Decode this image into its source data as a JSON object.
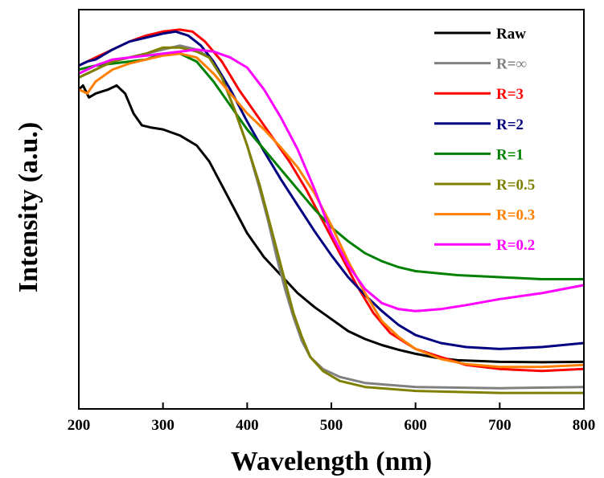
{
  "chart_data": {
    "type": "line",
    "title": "",
    "xlabel": "Wavelength (nm)",
    "ylabel": "Intensity (a.u.)",
    "xlim": [
      200,
      800
    ],
    "ylim": [
      0,
      1
    ],
    "x_ticks": [
      "200",
      "300",
      "400",
      "500",
      "600",
      "700",
      "800"
    ],
    "y_ticks_shown": false,
    "grid": false,
    "legend_position": "top-right",
    "series": [
      {
        "name": "Raw",
        "color": "#000000",
        "points": [
          [
            200,
            0.8
          ],
          [
            205,
            0.81
          ],
          [
            212,
            0.78
          ],
          [
            220,
            0.79
          ],
          [
            235,
            0.8
          ],
          [
            245,
            0.81
          ],
          [
            255,
            0.79
          ],
          [
            265,
            0.74
          ],
          [
            275,
            0.71
          ],
          [
            285,
            0.705
          ],
          [
            300,
            0.7
          ],
          [
            320,
            0.685
          ],
          [
            340,
            0.66
          ],
          [
            355,
            0.62
          ],
          [
            370,
            0.56
          ],
          [
            385,
            0.5
          ],
          [
            400,
            0.44
          ],
          [
            420,
            0.38
          ],
          [
            440,
            0.335
          ],
          [
            460,
            0.29
          ],
          [
            480,
            0.255
          ],
          [
            500,
            0.225
          ],
          [
            520,
            0.195
          ],
          [
            540,
            0.175
          ],
          [
            560,
            0.16
          ],
          [
            580,
            0.148
          ],
          [
            600,
            0.138
          ],
          [
            625,
            0.128
          ],
          [
            650,
            0.122
          ],
          [
            700,
            0.118
          ],
          [
            750,
            0.117
          ],
          [
            800,
            0.118
          ]
        ]
      },
      {
        "name": "R=∞",
        "color": "#808080",
        "points": [
          [
            200,
            0.83
          ],
          [
            210,
            0.84
          ],
          [
            220,
            0.85
          ],
          [
            240,
            0.87
          ],
          [
            260,
            0.88
          ],
          [
            280,
            0.89
          ],
          [
            300,
            0.9
          ],
          [
            320,
            0.91
          ],
          [
            340,
            0.9
          ],
          [
            355,
            0.88
          ],
          [
            370,
            0.83
          ],
          [
            385,
            0.75
          ],
          [
            400,
            0.66
          ],
          [
            415,
            0.55
          ],
          [
            425,
            0.47
          ],
          [
            435,
            0.38
          ],
          [
            445,
            0.3
          ],
          [
            455,
            0.23
          ],
          [
            465,
            0.17
          ],
          [
            475,
            0.13
          ],
          [
            490,
            0.1
          ],
          [
            510,
            0.08
          ],
          [
            540,
            0.065
          ],
          [
            600,
            0.055
          ],
          [
            700,
            0.052
          ],
          [
            800,
            0.055
          ]
        ]
      },
      {
        "name": "R=3",
        "color": "#ff0000",
        "points": [
          [
            200,
            0.86
          ],
          [
            210,
            0.87
          ],
          [
            220,
            0.88
          ],
          [
            240,
            0.9
          ],
          [
            260,
            0.92
          ],
          [
            280,
            0.935
          ],
          [
            300,
            0.945
          ],
          [
            320,
            0.95
          ],
          [
            335,
            0.945
          ],
          [
            350,
            0.92
          ],
          [
            370,
            0.87
          ],
          [
            390,
            0.8
          ],
          [
            410,
            0.74
          ],
          [
            430,
            0.68
          ],
          [
            450,
            0.62
          ],
          [
            470,
            0.55
          ],
          [
            490,
            0.47
          ],
          [
            510,
            0.39
          ],
          [
            530,
            0.31
          ],
          [
            550,
            0.24
          ],
          [
            570,
            0.19
          ],
          [
            600,
            0.15
          ],
          [
            630,
            0.13
          ],
          [
            660,
            0.11
          ],
          [
            700,
            0.1
          ],
          [
            750,
            0.095
          ],
          [
            800,
            0.1
          ]
        ]
      },
      {
        "name": "R=2",
        "color": "#000080",
        "points": [
          [
            200,
            0.86
          ],
          [
            210,
            0.87
          ],
          [
            220,
            0.875
          ],
          [
            240,
            0.9
          ],
          [
            260,
            0.92
          ],
          [
            280,
            0.93
          ],
          [
            300,
            0.94
          ],
          [
            315,
            0.945
          ],
          [
            330,
            0.935
          ],
          [
            345,
            0.91
          ],
          [
            360,
            0.87
          ],
          [
            380,
            0.8
          ],
          [
            400,
            0.72
          ],
          [
            420,
            0.645
          ],
          [
            440,
            0.575
          ],
          [
            460,
            0.51
          ],
          [
            480,
            0.445
          ],
          [
            500,
            0.385
          ],
          [
            520,
            0.33
          ],
          [
            540,
            0.285
          ],
          [
            560,
            0.245
          ],
          [
            580,
            0.21
          ],
          [
            600,
            0.185
          ],
          [
            630,
            0.165
          ],
          [
            660,
            0.155
          ],
          [
            700,
            0.15
          ],
          [
            750,
            0.155
          ],
          [
            800,
            0.165
          ]
        ]
      },
      {
        "name": "R=1",
        "color": "#008000",
        "points": [
          [
            200,
            0.85
          ],
          [
            210,
            0.855
          ],
          [
            220,
            0.86
          ],
          [
            240,
            0.865
          ],
          [
            260,
            0.87
          ],
          [
            280,
            0.875
          ],
          [
            300,
            0.89
          ],
          [
            320,
            0.89
          ],
          [
            340,
            0.87
          ],
          [
            360,
            0.82
          ],
          [
            380,
            0.76
          ],
          [
            400,
            0.7
          ],
          [
            420,
            0.65
          ],
          [
            440,
            0.6
          ],
          [
            460,
            0.55
          ],
          [
            480,
            0.5
          ],
          [
            500,
            0.455
          ],
          [
            520,
            0.42
          ],
          [
            540,
            0.39
          ],
          [
            560,
            0.37
          ],
          [
            580,
            0.355
          ],
          [
            600,
            0.345
          ],
          [
            650,
            0.335
          ],
          [
            700,
            0.33
          ],
          [
            750,
            0.325
          ],
          [
            800,
            0.325
          ]
        ]
      },
      {
        "name": "R=0.5",
        "color": "#808000",
        "points": [
          [
            200,
            0.83
          ],
          [
            210,
            0.84
          ],
          [
            220,
            0.85
          ],
          [
            240,
            0.87
          ],
          [
            260,
            0.88
          ],
          [
            280,
            0.89
          ],
          [
            300,
            0.905
          ],
          [
            320,
            0.905
          ],
          [
            340,
            0.895
          ],
          [
            355,
            0.88
          ],
          [
            370,
            0.83
          ],
          [
            385,
            0.75
          ],
          [
            400,
            0.66
          ],
          [
            415,
            0.56
          ],
          [
            425,
            0.48
          ],
          [
            435,
            0.4
          ],
          [
            445,
            0.32
          ],
          [
            455,
            0.24
          ],
          [
            465,
            0.18
          ],
          [
            475,
            0.13
          ],
          [
            490,
            0.095
          ],
          [
            510,
            0.07
          ],
          [
            540,
            0.055
          ],
          [
            600,
            0.045
          ],
          [
            700,
            0.04
          ],
          [
            800,
            0.04
          ]
        ]
      },
      {
        "name": "R=0.3",
        "color": "#ff8000",
        "points": [
          [
            200,
            0.8
          ],
          [
            210,
            0.79
          ],
          [
            220,
            0.82
          ],
          [
            240,
            0.85
          ],
          [
            260,
            0.865
          ],
          [
            280,
            0.875
          ],
          [
            300,
            0.885
          ],
          [
            320,
            0.89
          ],
          [
            340,
            0.88
          ],
          [
            360,
            0.84
          ],
          [
            380,
            0.79
          ],
          [
            400,
            0.74
          ],
          [
            420,
            0.7
          ],
          [
            440,
            0.655
          ],
          [
            460,
            0.605
          ],
          [
            480,
            0.54
          ],
          [
            500,
            0.46
          ],
          [
            520,
            0.37
          ],
          [
            540,
            0.29
          ],
          [
            560,
            0.22
          ],
          [
            580,
            0.18
          ],
          [
            600,
            0.15
          ],
          [
            630,
            0.125
          ],
          [
            660,
            0.112
          ],
          [
            700,
            0.105
          ],
          [
            750,
            0.105
          ],
          [
            800,
            0.11
          ]
        ]
      },
      {
        "name": "R=0.2",
        "color": "#ff00ff",
        "points": [
          [
            200,
            0.84
          ],
          [
            210,
            0.85
          ],
          [
            220,
            0.86
          ],
          [
            240,
            0.875
          ],
          [
            260,
            0.88
          ],
          [
            280,
            0.885
          ],
          [
            300,
            0.89
          ],
          [
            320,
            0.895
          ],
          [
            340,
            0.9
          ],
          [
            360,
            0.895
          ],
          [
            380,
            0.88
          ],
          [
            400,
            0.855
          ],
          [
            420,
            0.8
          ],
          [
            440,
            0.73
          ],
          [
            460,
            0.65
          ],
          [
            480,
            0.55
          ],
          [
            500,
            0.44
          ],
          [
            520,
            0.36
          ],
          [
            540,
            0.3
          ],
          [
            560,
            0.265
          ],
          [
            580,
            0.25
          ],
          [
            600,
            0.245
          ],
          [
            630,
            0.25
          ],
          [
            660,
            0.26
          ],
          [
            700,
            0.275
          ],
          [
            750,
            0.29
          ],
          [
            800,
            0.31
          ]
        ]
      }
    ]
  }
}
